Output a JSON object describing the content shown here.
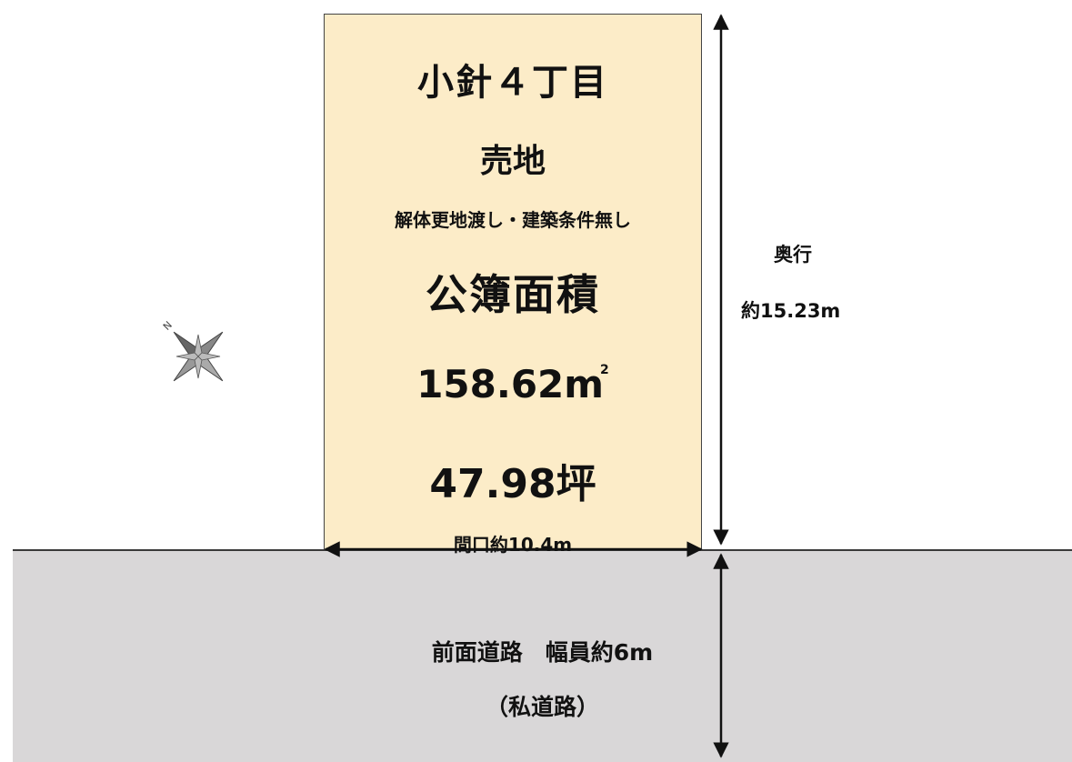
{
  "lot": {
    "title": "小針４丁目",
    "sale": "売地",
    "conditions": "解体更地渡し・建築条件無し",
    "area_label": "公簿面積",
    "area_sqm": "158.62",
    "area_sqm_unit": "m",
    "area_sqm_sup": "2",
    "area_tsubo": "47.98坪",
    "frontage": "間口約10.4m"
  },
  "depth": {
    "label": "奥行",
    "value": "約15.23m"
  },
  "road": {
    "line1": "前面道路　幅員約6m",
    "line2": "（私道路）"
  },
  "colors": {
    "lot_fill": "#fcecc8",
    "road_fill": "#d9d7d8"
  },
  "icons": {
    "compass": "compass-rose-icon"
  }
}
